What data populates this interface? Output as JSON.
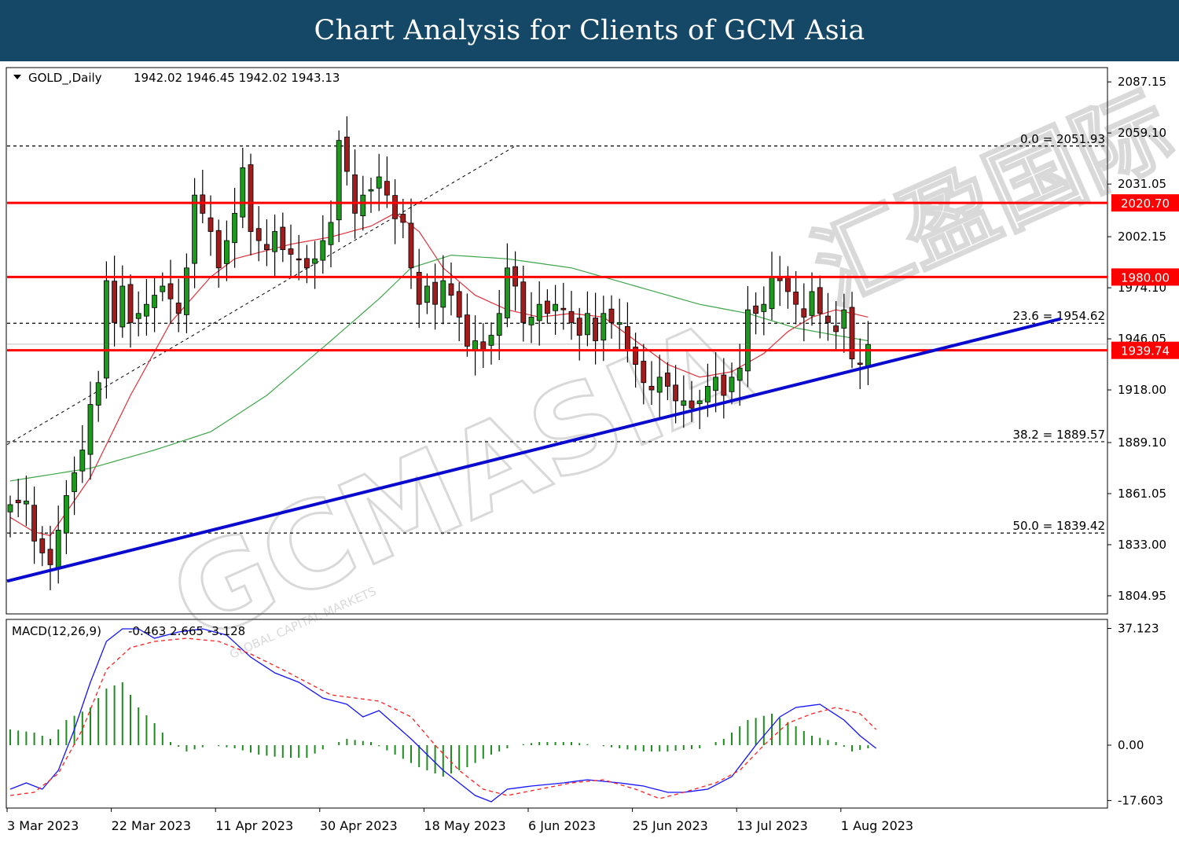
{
  "header": {
    "title": "Chart Analysis for Clients of GCM Asia"
  },
  "watermark": {
    "text": "GCMASIA",
    "subtext": "GLOBAL CAPITAL MARKETS",
    "cn_text": "汇盈国际"
  },
  "colors": {
    "header_bg": "#154766",
    "bull_candle": "#1d9a1d",
    "bear_candle": "#a11d1d",
    "sr_line": "#ff0000",
    "trend_line": "#0a0acf",
    "ma_fast": "#e0313a",
    "ma_slow": "#3fa64a",
    "macd_line": "#1414ff",
    "signal_line": "#ff2020",
    "histogram": "#1e8c1e",
    "current_price": "#c0c0c0"
  },
  "chart_data": [
    {
      "type": "candlestick",
      "title": "GOLD_,Daily",
      "ohlc_header": "1942.02 1946.45 1942.02 1943.13",
      "ylim": [
        1795,
        2095
      ],
      "y_ticks": [
        "2087.15",
        "2059.10",
        "2031.05",
        "2002.15",
        "1974.10",
        "1946.05",
        "1918.00",
        "1889.10",
        "1861.05",
        "1833.00",
        "1804.95"
      ],
      "x_labels": [
        "3 Mar 2023",
        "22 Mar 2023",
        "11 Apr 2023",
        "30 Apr 2023",
        "18 May 2023",
        "6 Jun 2023",
        "25 Jun 2023",
        "13 Jul 2023",
        "1 Aug 2023"
      ],
      "x_label_bar_index": [
        0,
        13,
        26,
        39,
        52,
        65,
        78,
        91,
        104
      ],
      "bar_count": 108,
      "resistance_levels": [
        {
          "value": 2020.7,
          "label": "2020.70"
        },
        {
          "value": 1980.0,
          "label": "1980.00"
        },
        {
          "value": 1939.74,
          "label": "1939.74"
        }
      ],
      "fibonacci": [
        {
          "label": "0.0 = 2051.93",
          "value": 2051.93
        },
        {
          "label": "23.6 = 1954.62",
          "value": 1954.62
        },
        {
          "label": "38.2 = 1889.57",
          "value": 1889.57
        },
        {
          "label": "50.0 = 1839.42",
          "value": 1839.42
        }
      ],
      "current_price": 1943.13,
      "trendline": {
        "start": {
          "bar": 0,
          "value": 1813
        },
        "end": {
          "bar": 131,
          "value": 1957
        }
      },
      "close_anchors": [
        [
          0,
          1855
        ],
        [
          2,
          1857
        ],
        [
          3,
          1835
        ],
        [
          5,
          1822
        ],
        [
          7,
          1860
        ],
        [
          9,
          1885
        ],
        [
          10,
          1910
        ],
        [
          11,
          1922
        ],
        [
          12,
          1978
        ],
        [
          13,
          1955
        ],
        [
          14,
          1975
        ],
        [
          15,
          1955
        ],
        [
          17,
          1965
        ],
        [
          19,
          1975
        ],
        [
          20,
          1968
        ],
        [
          21,
          1960
        ],
        [
          22,
          1985
        ],
        [
          23,
          2025
        ],
        [
          24,
          2015
        ],
        [
          25,
          2005
        ],
        [
          26,
          1985
        ],
        [
          27,
          2000
        ],
        [
          28,
          2015
        ],
        [
          29,
          2040
        ],
        [
          30,
          2005
        ],
        [
          32,
          1995
        ],
        [
          33,
          2005
        ],
        [
          34,
          1995
        ],
        [
          36,
          1990
        ],
        [
          37,
          1985
        ],
        [
          38,
          1990
        ],
        [
          40,
          2010
        ],
        [
          41,
          2055
        ],
        [
          42,
          2038
        ],
        [
          43,
          2015
        ],
        [
          44,
          2025
        ],
        [
          45,
          2028
        ],
        [
          46,
          2035
        ],
        [
          47,
          2025
        ],
        [
          48,
          2012
        ],
        [
          49,
          2010
        ],
        [
          50,
          1985
        ],
        [
          51,
          1965
        ],
        [
          52,
          1975
        ],
        [
          53,
          1965
        ],
        [
          54,
          1978
        ],
        [
          55,
          1970
        ],
        [
          56,
          1958
        ],
        [
          57,
          1942
        ],
        [
          58,
          1945
        ],
        [
          59,
          1940
        ],
        [
          60,
          1948
        ],
        [
          61,
          1960
        ],
        [
          62,
          1985
        ],
        [
          63,
          1975
        ],
        [
          64,
          1955
        ],
        [
          65,
          1958
        ],
        [
          66,
          1965
        ],
        [
          67,
          1960
        ],
        [
          68,
          1965
        ],
        [
          69,
          1962
        ],
        [
          70,
          1955
        ],
        [
          71,
          1948
        ],
        [
          72,
          1960
        ],
        [
          73,
          1945
        ],
        [
          74,
          1960
        ],
        [
          75,
          1955
        ],
        [
          76,
          1955
        ],
        [
          77,
          1940
        ],
        [
          78,
          1932
        ],
        [
          79,
          1922
        ],
        [
          80,
          1918
        ],
        [
          81,
          1925
        ],
        [
          82,
          1920
        ],
        [
          83,
          1912
        ],
        [
          84,
          1912
        ],
        [
          85,
          1908
        ],
        [
          86,
          1912
        ],
        [
          87,
          1920
        ],
        [
          88,
          1925
        ],
        [
          89,
          1915
        ],
        [
          90,
          1925
        ],
        [
          91,
          1930
        ],
        [
          92,
          1962
        ],
        [
          93,
          1960
        ],
        [
          94,
          1965
        ],
        [
          95,
          1980
        ],
        [
          96,
          1978
        ],
        [
          97,
          1972
        ],
        [
          98,
          1965
        ],
        [
          99,
          1958
        ],
        [
          100,
          1972
        ],
        [
          101,
          1960
        ],
        [
          102,
          1955
        ],
        [
          103,
          1950
        ],
        [
          104,
          1962
        ],
        [
          105,
          1935
        ],
        [
          106,
          1932
        ],
        [
          107,
          1943
        ]
      ],
      "indicators": [
        {
          "name": "MA fast",
          "anchors": [
            [
              0,
              1848
            ],
            [
              3,
              1840
            ],
            [
              5,
              1838
            ],
            [
              10,
              1870
            ],
            [
              15,
              1915
            ],
            [
              20,
              1955
            ],
            [
              25,
              1980
            ],
            [
              28,
              1990
            ],
            [
              35,
              1998
            ],
            [
              40,
              2002
            ],
            [
              45,
              2008
            ],
            [
              48,
              2015
            ],
            [
              51,
              2005
            ],
            [
              54,
              1985
            ],
            [
              58,
              1970
            ],
            [
              62,
              1962
            ],
            [
              66,
              1958
            ],
            [
              70,
              1960
            ],
            [
              74,
              1958
            ],
            [
              78,
              1945
            ],
            [
              82,
              1932
            ],
            [
              86,
              1925
            ],
            [
              90,
              1928
            ],
            [
              94,
              1938
            ],
            [
              97,
              1950
            ],
            [
              100,
              1958
            ],
            [
              103,
              1962
            ],
            [
              107,
              1958
            ]
          ]
        },
        {
          "name": "MA slow",
          "anchors": [
            [
              0,
              1868
            ],
            [
              10,
              1875
            ],
            [
              18,
              1885
            ],
            [
              25,
              1895
            ],
            [
              32,
              1915
            ],
            [
              40,
              1945
            ],
            [
              46,
              1968
            ],
            [
              50,
              1985
            ],
            [
              55,
              1992
            ],
            [
              62,
              1990
            ],
            [
              70,
              1985
            ],
            [
              78,
              1975
            ],
            [
              86,
              1965
            ],
            [
              92,
              1960
            ],
            [
              98,
              1952
            ],
            [
              103,
              1948
            ],
            [
              107,
              1945
            ]
          ]
        }
      ]
    },
    {
      "type": "macd",
      "title": "MACD(12,26,9)",
      "values_header": "-0.463 2.665 -3.128",
      "params": [
        12,
        26,
        9
      ],
      "values": {
        "histogram": -0.463,
        "macd": 2.665,
        "signal": -3.128
      },
      "ylim": [
        -20,
        40
      ],
      "y_ticks": [
        "37.123",
        "0.00",
        "-17.603"
      ],
      "series": [
        {
          "name": "MACD",
          "anchors": [
            [
              0,
              -14
            ],
            [
              2,
              -12
            ],
            [
              4,
              -14
            ],
            [
              6,
              -8
            ],
            [
              8,
              5
            ],
            [
              10,
              20
            ],
            [
              12,
              33
            ],
            [
              14,
              37
            ],
            [
              16,
              37
            ],
            [
              18,
              34
            ],
            [
              21,
              36
            ],
            [
              24,
              37
            ],
            [
              27,
              35
            ],
            [
              30,
              28
            ],
            [
              33,
              23
            ],
            [
              36,
              20
            ],
            [
              39,
              15
            ],
            [
              42,
              13
            ],
            [
              44,
              9
            ],
            [
              46,
              11
            ],
            [
              50,
              2
            ],
            [
              54,
              -8
            ],
            [
              58,
              -16
            ],
            [
              60,
              -18
            ],
            [
              62,
              -14
            ],
            [
              65,
              -13
            ],
            [
              69,
              -12
            ],
            [
              72,
              -11
            ],
            [
              76,
              -12
            ],
            [
              79,
              -13
            ],
            [
              82,
              -15
            ],
            [
              84,
              -15
            ],
            [
              87,
              -14
            ],
            [
              90,
              -10
            ],
            [
              93,
              0
            ],
            [
              96,
              9
            ],
            [
              98,
              12
            ],
            [
              101,
              13
            ],
            [
              104,
              8
            ],
            [
              106,
              3
            ],
            [
              108,
              -1
            ]
          ]
        },
        {
          "name": "Signal",
          "anchors": [
            [
              0,
              -16
            ],
            [
              3,
              -15
            ],
            [
              6,
              -9
            ],
            [
              9,
              5
            ],
            [
              12,
              24
            ],
            [
              15,
              31
            ],
            [
              18,
              33
            ],
            [
              22,
              34
            ],
            [
              26,
              33
            ],
            [
              30,
              29
            ],
            [
              34,
              24
            ],
            [
              37,
              20
            ],
            [
              40,
              16
            ],
            [
              43,
              15
            ],
            [
              46,
              14
            ],
            [
              50,
              9
            ],
            [
              53,
              0
            ],
            [
              56,
              -8
            ],
            [
              59,
              -14
            ],
            [
              62,
              -16
            ],
            [
              66,
              -14
            ],
            [
              70,
              -12
            ],
            [
              74,
              -11
            ],
            [
              78,
              -14
            ],
            [
              81,
              -17
            ],
            [
              84,
              -15
            ],
            [
              88,
              -12
            ],
            [
              91,
              -8
            ],
            [
              94,
              0
            ],
            [
              97,
              7
            ],
            [
              100,
              10
            ],
            [
              103,
              12
            ],
            [
              106,
              10
            ],
            [
              108,
              5
            ]
          ]
        },
        {
          "name": "Histogram",
          "anchors": [
            [
              0,
              5
            ],
            [
              3,
              4
            ],
            [
              5,
              2
            ],
            [
              7,
              8
            ],
            [
              10,
              12
            ],
            [
              12,
              18
            ],
            [
              14,
              20
            ],
            [
              16,
              12
            ],
            [
              18,
              7
            ],
            [
              20,
              1
            ],
            [
              22,
              -2
            ],
            [
              25,
              0
            ],
            [
              28,
              -1
            ],
            [
              31,
              -3
            ],
            [
              34,
              -4
            ],
            [
              37,
              -4
            ],
            [
              40,
              0
            ],
            [
              42,
              2
            ],
            [
              45,
              1
            ],
            [
              48,
              -3
            ],
            [
              51,
              -7
            ],
            [
              54,
              -10
            ],
            [
              57,
              -7
            ],
            [
              60,
              -3
            ],
            [
              63,
              0
            ],
            [
              66,
              1
            ],
            [
              70,
              1
            ],
            [
              73,
              0
            ],
            [
              76,
              -1
            ],
            [
              79,
              -2
            ],
            [
              82,
              -2
            ],
            [
              86,
              -1
            ],
            [
              89,
              2
            ],
            [
              92,
              8
            ],
            [
              95,
              10
            ],
            [
              98,
              6
            ],
            [
              100,
              3
            ],
            [
              103,
              1
            ],
            [
              105,
              -2
            ],
            [
              107,
              -1
            ]
          ]
        }
      ]
    }
  ]
}
